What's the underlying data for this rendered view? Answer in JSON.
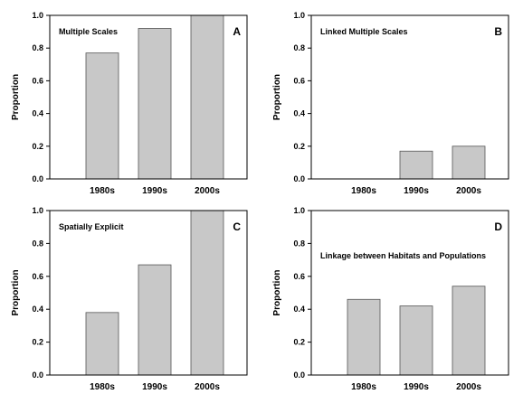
{
  "chart_data": [
    {
      "type": "bar",
      "panel": "A",
      "title": "Multiple Scales",
      "ylabel": "Proportion",
      "xlabel": "",
      "categories": [
        "1980s",
        "1990s",
        "2000s"
      ],
      "values": [
        0.77,
        0.92,
        1.0
      ],
      "ylim": [
        0,
        1.0
      ],
      "yticks": [
        "0.0",
        "0.2",
        "0.4",
        "0.6",
        "0.8",
        "1.0"
      ],
      "grid": false,
      "bar_color": "#c8c8c8"
    },
    {
      "type": "bar",
      "panel": "B",
      "title": "Linked Multiple Scales",
      "ylabel": "Proportion",
      "xlabel": "",
      "categories": [
        "1980s",
        "1990s",
        "2000s"
      ],
      "values": [
        0.0,
        0.17,
        0.2
      ],
      "ylim": [
        0,
        1.0
      ],
      "yticks": [
        "0.0",
        "0.2",
        "0.4",
        "0.6",
        "0.8",
        "1.0"
      ],
      "grid": false,
      "bar_color": "#c8c8c8"
    },
    {
      "type": "bar",
      "panel": "C",
      "title": "Spatially Explicit",
      "ylabel": "Proportion",
      "xlabel": "",
      "categories": [
        "1980s",
        "1990s",
        "2000s"
      ],
      "values": [
        0.38,
        0.67,
        1.0
      ],
      "ylim": [
        0,
        1.0
      ],
      "yticks": [
        "0.0",
        "0.2",
        "0.4",
        "0.6",
        "0.8",
        "1.0"
      ],
      "grid": false,
      "bar_color": "#c8c8c8"
    },
    {
      "type": "bar",
      "panel": "D",
      "title": "Linkage between Habitats and Populations",
      "ylabel": "Proportion",
      "xlabel": "",
      "categories": [
        "1980s",
        "1990s",
        "2000s"
      ],
      "values": [
        0.46,
        0.42,
        0.54
      ],
      "ylim": [
        0,
        1.0
      ],
      "yticks": [
        "0.0",
        "0.2",
        "0.4",
        "0.6",
        "0.8",
        "1.0"
      ],
      "grid": false,
      "bar_color": "#c8c8c8"
    }
  ]
}
